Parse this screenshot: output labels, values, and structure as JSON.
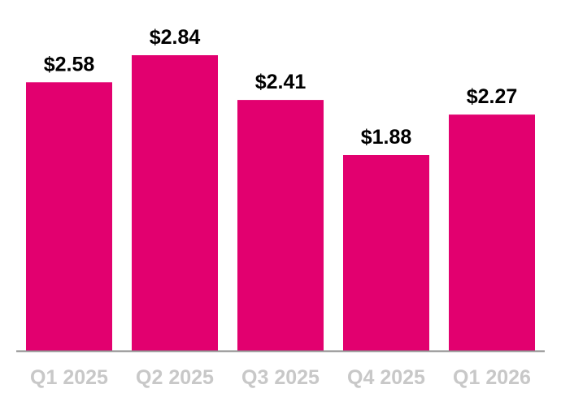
{
  "chart_data": {
    "type": "bar",
    "title": "",
    "xlabel": "",
    "ylabel": "",
    "categories": [
      "Q1 2025",
      "Q2 2025",
      "Q3 2025",
      "Q4 2025",
      "Q1 2026"
    ],
    "values": [
      2.58,
      2.84,
      2.41,
      1.88,
      2.27
    ],
    "data_labels": [
      "$2.58",
      "$2.84",
      "$2.41",
      "$1.88",
      "$2.27"
    ],
    "ylim": [
      0,
      2.84
    ],
    "grid": false,
    "legend": "none",
    "colors": {
      "bar": "#e2006f",
      "axis": "#8c8c8c",
      "tick_label": "#c8c8c8",
      "data_label": "#000000"
    }
  }
}
